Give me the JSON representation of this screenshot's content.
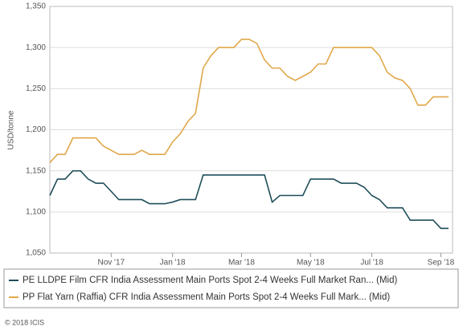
{
  "chart_data": {
    "type": "line",
    "y_label": "USD/tonne",
    "categories": [
      null,
      null,
      null,
      null,
      null,
      null,
      null,
      null,
      "Nov '17",
      null,
      null,
      null,
      null,
      null,
      null,
      null,
      "Jan '18",
      null,
      null,
      null,
      null,
      null,
      null,
      null,
      null,
      "Mar '18",
      null,
      null,
      null,
      null,
      null,
      null,
      null,
      null,
      "May '18",
      null,
      null,
      null,
      null,
      null,
      null,
      null,
      "Jul '18",
      null,
      null,
      null,
      null,
      null,
      null,
      null,
      null,
      "Sep '18",
      null
    ],
    "series": [
      {
        "name": "PE LLDPE Film CFR India Assessment Main Ports Spot 2-4 Weeks Full Market Ran... (Mid)",
        "color": "#1f4e5a",
        "values": [
          1120,
          1140,
          1140,
          1150,
          1150,
          1140,
          1135,
          1135,
          1125,
          1115,
          1115,
          1115,
          1115,
          1110,
          1110,
          1110,
          1112,
          1115,
          1115,
          1115,
          1145,
          1145,
          1145,
          1145,
          1145,
          1145,
          1145,
          1145,
          1145,
          1112,
          1120,
          1120,
          1120,
          1120,
          1140,
          1140,
          1140,
          1140,
          1135,
          1135,
          1135,
          1130,
          1120,
          1115,
          1105,
          1105,
          1105,
          1090,
          1090,
          1090,
          1090,
          1080,
          1080
        ]
      },
      {
        "name": "PP Flat Yarn (Raffia) CFR India Assessment Main Ports Spot 2-4 Weeks Full Mark... (Mid)",
        "color": "#e0a84a",
        "values": [
          1160,
          1170,
          1170,
          1190,
          1190,
          1190,
          1190,
          1180,
          1175,
          1170,
          1170,
          1170,
          1175,
          1170,
          1170,
          1170,
          1185,
          1195,
          1210,
          1220,
          1275,
          1290,
          1300,
          1300,
          1300,
          1310,
          1310,
          1305,
          1285,
          1275,
          1275,
          1265,
          1260,
          1265,
          1270,
          1280,
          1280,
          1300,
          1300,
          1300,
          1300,
          1300,
          1300,
          1290,
          1270,
          1263,
          1260,
          1250,
          1230,
          1230,
          1240,
          1240,
          1240
        ]
      }
    ],
    "ylim": [
      1050,
      1350
    ],
    "yticks": [
      {
        "value": 1050,
        "label": "1,050"
      },
      {
        "value": 1100,
        "label": "1,100"
      },
      {
        "value": 1150,
        "label": "1,150"
      },
      {
        "value": 1200,
        "label": "1,200"
      },
      {
        "value": 1250,
        "label": "1,250"
      },
      {
        "value": 1300,
        "label": "1,300"
      },
      {
        "value": 1350,
        "label": "1,350"
      }
    ],
    "grid": true,
    "legend": "bottom",
    "footer": "© 2018 ICIS"
  }
}
